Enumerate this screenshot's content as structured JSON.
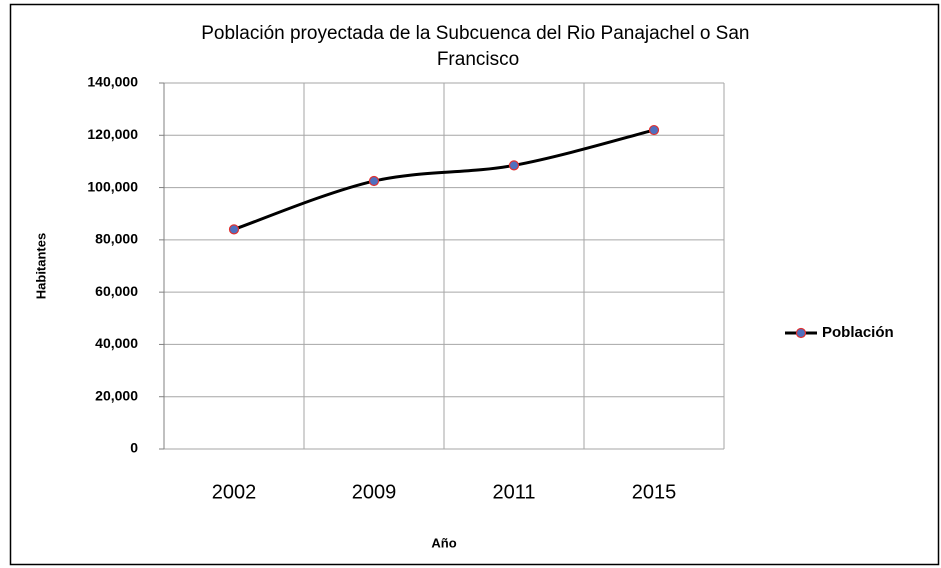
{
  "chart_data": {
    "type": "line",
    "title": "Población proyectada de la Subcuenca del Rio Panajachel o San Francisco",
    "x_label": "Año",
    "y_label": "Habitantes",
    "categories": [
      "2002",
      "2009",
      "2011",
      "2015"
    ],
    "series": [
      {
        "name": "Población",
        "color": "#000000",
        "marker_color": "#4f6fbf",
        "values": [
          84000,
          102500,
          108500,
          122000
        ]
      }
    ],
    "ylim": [
      0,
      140000
    ],
    "yticks": [
      0,
      {
        "value": 20000,
        "label": "20,000"
      },
      {
        "value": 40000,
        "label": "40,000"
      },
      {
        "value": 60000,
        "label": "60,000"
      },
      {
        "value": 80000,
        "label": "80,000"
      },
      {
        "value": 100000,
        "label": "100,000"
      },
      {
        "value": 120000,
        "label": "120,000"
      },
      {
        "value": 140000,
        "label": "140,000"
      }
    ],
    "grid": true,
    "legend": "right"
  }
}
